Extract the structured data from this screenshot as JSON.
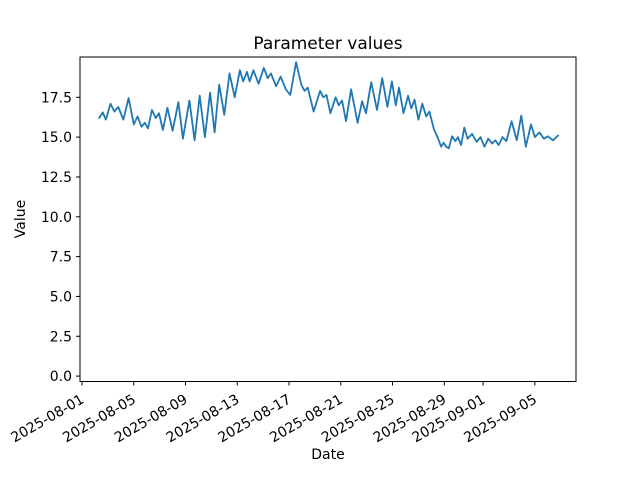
{
  "chart_data": {
    "type": "line",
    "title": "Parameter values",
    "xlabel": "Date",
    "ylabel": "Value",
    "grid": false,
    "legend": null,
    "background_color": "#ffffff",
    "axes": {
      "xlim_days_from_2025_08_01": [
        -0.155,
        38.18
      ],
      "ylim": [
        -0.34,
        20.03
      ]
    },
    "x_ticks": [
      {
        "day": 0,
        "label": "2025-08-01"
      },
      {
        "day": 4,
        "label": "2025-08-05"
      },
      {
        "day": 8,
        "label": "2025-08-09"
      },
      {
        "day": 12,
        "label": "2025-08-13"
      },
      {
        "day": 16,
        "label": "2025-08-17"
      },
      {
        "day": 20,
        "label": "2025-08-21"
      },
      {
        "day": 24,
        "label": "2025-08-25"
      },
      {
        "day": 28,
        "label": "2025-08-29"
      },
      {
        "day": 31,
        "label": "2025-09-01"
      },
      {
        "day": 35,
        "label": "2025-09-05"
      }
    ],
    "y_ticks": [
      {
        "value": 0,
        "label": "0.0"
      },
      {
        "value": 2.5,
        "label": "2.5"
      },
      {
        "value": 5,
        "label": "5.0"
      },
      {
        "value": 7.5,
        "label": "7.5"
      },
      {
        "value": 10,
        "label": "10.0"
      },
      {
        "value": 12.5,
        "label": "12.5"
      },
      {
        "value": 15,
        "label": "15.0"
      },
      {
        "value": 17.5,
        "label": "17.5"
      }
    ],
    "series": [
      {
        "name": "parameter-values",
        "color": "#1f77b4",
        "x_days_from_2025_08_01": [
          1.33,
          1.6,
          1.85,
          2.2,
          2.5,
          2.8,
          3.2,
          3.6,
          4.0,
          4.3,
          4.6,
          4.85,
          5.1,
          5.4,
          5.7,
          5.95,
          6.25,
          6.6,
          7.0,
          7.45,
          7.8,
          8.3,
          8.7,
          9.1,
          9.5,
          9.9,
          10.25,
          10.6,
          11.0,
          11.4,
          11.8,
          12.2,
          12.45,
          12.75,
          12.95,
          13.25,
          13.65,
          14.05,
          14.35,
          14.6,
          15.0,
          15.35,
          15.75,
          16.1,
          16.55,
          16.95,
          17.2,
          17.45,
          17.9,
          18.4,
          18.65,
          18.9,
          19.2,
          19.6,
          19.85,
          20.1,
          20.4,
          20.8,
          21.3,
          21.65,
          21.95,
          22.35,
          22.8,
          23.2,
          23.6,
          23.95,
          24.25,
          24.5,
          24.85,
          25.2,
          25.45,
          25.7,
          26.0,
          26.3,
          26.6,
          26.85,
          27.2,
          27.5,
          27.75,
          27.95,
          28.15,
          28.35,
          28.6,
          28.85,
          29.05,
          29.3,
          29.55,
          29.8,
          30.15,
          30.5,
          30.8,
          31.1,
          31.4,
          31.7,
          31.95,
          32.2,
          32.5,
          32.8,
          33.2,
          33.6,
          33.95,
          34.3,
          34.7,
          35.0,
          35.35,
          35.7,
          36.0,
          36.4,
          36.8
        ],
        "values": [
          16.2,
          16.55,
          16.1,
          17.1,
          16.6,
          16.9,
          16.1,
          17.45,
          15.8,
          16.3,
          15.65,
          15.9,
          15.55,
          16.7,
          16.2,
          16.5,
          15.45,
          16.85,
          15.4,
          17.2,
          14.9,
          17.3,
          14.8,
          17.6,
          15.0,
          17.8,
          15.3,
          18.3,
          16.4,
          19.0,
          17.5,
          19.2,
          18.5,
          19.1,
          18.5,
          19.2,
          18.35,
          19.35,
          18.7,
          19.0,
          18.2,
          18.8,
          18.0,
          17.65,
          19.7,
          18.3,
          17.9,
          18.1,
          16.6,
          17.9,
          17.5,
          17.65,
          16.5,
          17.5,
          17.0,
          17.3,
          16.0,
          18.0,
          15.9,
          17.25,
          16.5,
          18.45,
          16.7,
          18.7,
          16.9,
          18.5,
          17.0,
          18.1,
          16.5,
          17.6,
          16.8,
          17.35,
          16.1,
          17.1,
          16.3,
          16.6,
          15.5,
          14.95,
          14.4,
          14.65,
          14.4,
          14.3,
          15.05,
          14.75,
          15.0,
          14.5,
          15.6,
          14.9,
          15.2,
          14.7,
          15.0,
          14.4,
          14.9,
          14.6,
          14.8,
          14.5,
          15.0,
          14.75,
          16.0,
          14.8,
          16.35,
          14.4,
          15.8,
          15.0,
          15.3,
          14.9,
          15.05,
          14.8,
          15.1
        ]
      }
    ]
  }
}
